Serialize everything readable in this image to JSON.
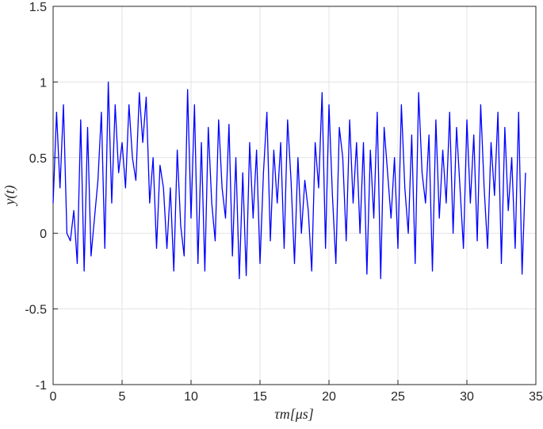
{
  "chart_data": {
    "type": "line",
    "xlabel": "τm[μs]",
    "ylabel": "y(t)",
    "xlim": [
      0,
      35
    ],
    "xticks": [
      0,
      5,
      10,
      15,
      20,
      25,
      30,
      35
    ],
    "ylim": [
      -1,
      1.5
    ],
    "yticks": [
      -1,
      -0.5,
      0,
      0.5,
      1,
      1.5
    ],
    "grid": true,
    "x": [
      0,
      0.25,
      0.5,
      0.75,
      1,
      1.25,
      1.5,
      1.75,
      2,
      2.25,
      2.5,
      2.75,
      3,
      3.25,
      3.5,
      3.75,
      4,
      4.25,
      4.5,
      4.75,
      5,
      5.25,
      5.5,
      5.75,
      6,
      6.25,
      6.5,
      6.75,
      7,
      7.25,
      7.5,
      7.75,
      8,
      8.25,
      8.5,
      8.75,
      9,
      9.25,
      9.5,
      9.75,
      10,
      10.25,
      10.5,
      10.75,
      11,
      11.25,
      11.5,
      11.75,
      12,
      12.25,
      12.5,
      12.75,
      13,
      13.25,
      13.5,
      13.75,
      14,
      14.25,
      14.5,
      14.75,
      15,
      15.25,
      15.5,
      15.75,
      16,
      16.25,
      16.5,
      16.75,
      17,
      17.25,
      17.5,
      17.75,
      18,
      18.25,
      18.5,
      18.75,
      19,
      19.25,
      19.5,
      19.75,
      20,
      20.25,
      20.5,
      20.75,
      21,
      21.25,
      21.5,
      21.75,
      22,
      22.25,
      22.5,
      22.75,
      23,
      23.25,
      23.5,
      23.75,
      24,
      24.25,
      24.5,
      24.75,
      25,
      25.25,
      25.5,
      25.75,
      26,
      26.25,
      26.5,
      26.75,
      27,
      27.25,
      27.5,
      27.75,
      28,
      28.25,
      28.5,
      28.75,
      29,
      29.25,
      29.5,
      29.75,
      30,
      30.25,
      30.5,
      30.75,
      31,
      31.25,
      31.5,
      31.75,
      32,
      32.25,
      32.5,
      32.75,
      33,
      33.25,
      33.5,
      33.75,
      34,
      34.25
    ],
    "series": [
      {
        "color": "#0000ff",
        "values": [
          0.2,
          0.8,
          0.3,
          0.85,
          0.0,
          -0.05,
          0.15,
          -0.2,
          0.75,
          -0.25,
          0.7,
          -0.15,
          0.1,
          0.35,
          0.8,
          -0.1,
          1.0,
          0.2,
          0.85,
          0.4,
          0.6,
          0.3,
          0.85,
          0.5,
          0.35,
          0.93,
          0.6,
          0.9,
          0.2,
          0.5,
          -0.1,
          0.45,
          0.3,
          -0.1,
          0.3,
          -0.25,
          0.55,
          0.05,
          -0.15,
          0.95,
          0.1,
          0.85,
          -0.2,
          0.6,
          -0.25,
          0.7,
          0.2,
          -0.05,
          0.75,
          0.3,
          0.1,
          0.72,
          -0.15,
          0.5,
          -0.3,
          0.4,
          -0.28,
          0.6,
          0.1,
          0.55,
          -0.2,
          0.4,
          0.8,
          -0.05,
          0.55,
          0.2,
          0.6,
          -0.1,
          0.75,
          0.35,
          -0.2,
          0.5,
          0.0,
          0.35,
          0.15,
          -0.25,
          0.6,
          0.3,
          0.93,
          -0.1,
          0.85,
          0.25,
          -0.2,
          0.7,
          0.5,
          -0.05,
          0.75,
          0.2,
          0.6,
          0.0,
          0.6,
          -0.27,
          0.55,
          0.1,
          0.8,
          -0.3,
          0.7,
          0.4,
          0.1,
          0.5,
          -0.1,
          0.85,
          0.3,
          0.0,
          0.65,
          -0.2,
          0.93,
          0.4,
          0.2,
          0.65,
          -0.25,
          0.75,
          0.1,
          0.55,
          0.2,
          0.8,
          0.0,
          0.7,
          0.3,
          -0.1,
          0.75,
          0.2,
          0.65,
          -0.05,
          0.85,
          0.3,
          -0.1,
          0.6,
          0.25,
          0.8,
          -0.2,
          0.7,
          0.15,
          0.5,
          -0.1,
          0.8,
          -0.27,
          0.4
        ]
      }
    ]
  }
}
